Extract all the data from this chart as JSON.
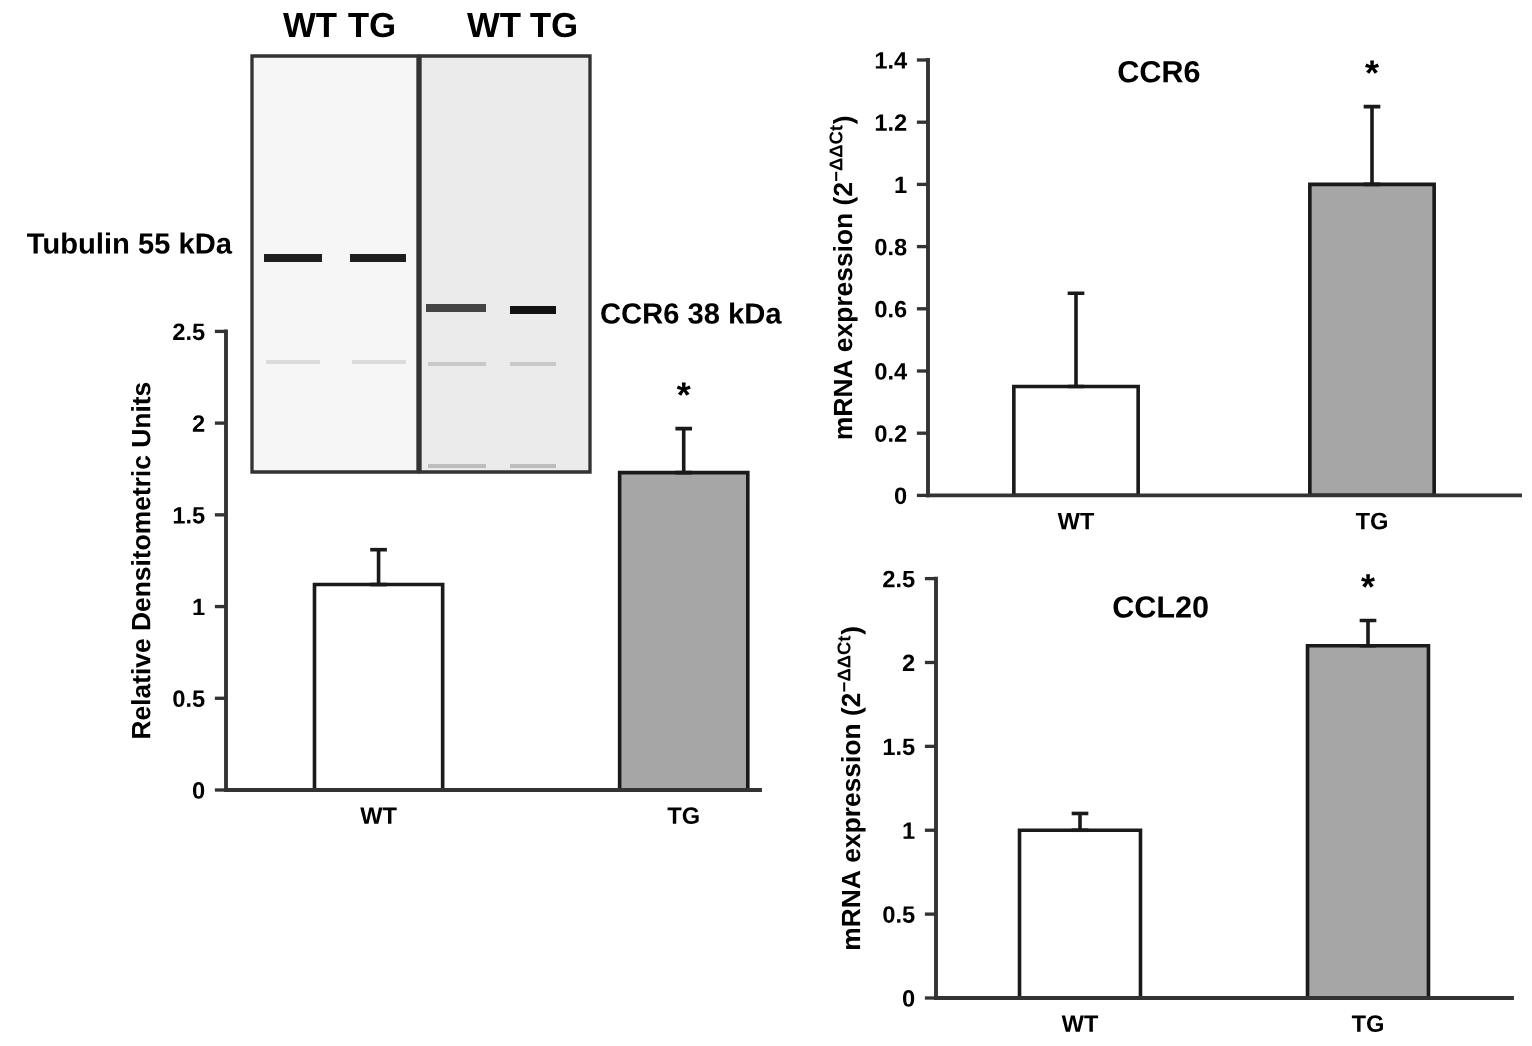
{
  "chart_data": [
    {
      "type": "bar",
      "ylabel": "Relative Densitometric Units",
      "categories": [
        "WT",
        "TG"
      ],
      "values": [
        1.12,
        1.73
      ],
      "colors": [
        "#ffffff",
        "#a6a6a6"
      ],
      "errors": [
        [
          1.12,
          1.31
        ],
        [
          1.73,
          1.97
        ]
      ],
      "ylim": [
        0,
        2.5
      ],
      "yticks": [
        0,
        0.5,
        1,
        1.5,
        2,
        2.5
      ],
      "annotations": [
        "WT",
        "TG",
        "WT",
        "TG",
        "Tubulin 55 kDa",
        "CCR6 38 kDa",
        {
          "text": "*",
          "x": "TG",
          "y": 1.97
        }
      ]
    },
    {
      "type": "bar",
      "title": "CCR6",
      "ylabel": "mRNA expression (2$^{−ΔΔCt}$)",
      "categories": [
        "WT",
        "TG"
      ],
      "values": [
        0.35,
        1.0
      ],
      "colors": [
        "#ffffff",
        "#a6a6a6"
      ],
      "errors": [
        [
          0.35,
          0.65
        ],
        [
          1.0,
          1.25
        ]
      ],
      "ylim": [
        0,
        1.4
      ],
      "yticks": [
        0,
        0.2,
        0.4,
        0.6,
        0.8,
        1,
        1.2,
        1.4
      ],
      "annotations": [
        {
          "text": "*",
          "x": "TG",
          "y": 1.25
        }
      ]
    },
    {
      "type": "bar",
      "title": "CCL20",
      "ylabel": "mRNA expression (2$^{−ΔΔCt}$)",
      "categories": [
        "WT",
        "TG"
      ],
      "values": [
        1.0,
        2.1
      ],
      "colors": [
        "#ffffff",
        "#a6a6a6"
      ],
      "errors": [
        [
          1.0,
          1.1
        ],
        [
          2.1,
          2.25
        ]
      ],
      "ylim": [
        0,
        2.5
      ],
      "yticks": [
        0,
        0.5,
        1,
        1.5,
        2,
        2.5
      ],
      "annotations": [
        {
          "text": "*",
          "x": "TG",
          "y": 2.25
        }
      ]
    }
  ]
}
